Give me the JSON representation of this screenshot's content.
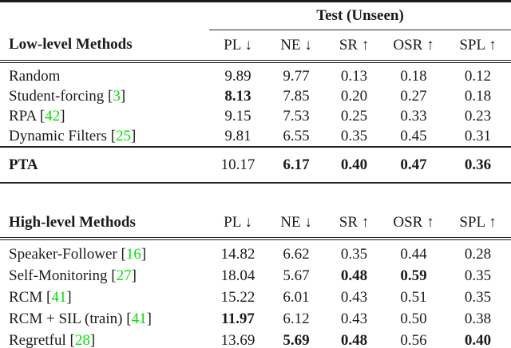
{
  "colors": {
    "citation_green": "#00e300",
    "text": "#1b1b1b",
    "rule": "#1b1b1b"
  },
  "span_header": "Test (Unseen)",
  "low": {
    "section_label": "Low-level Methods",
    "columns": [
      "PL ↓",
      "NE ↓",
      "SR ↑",
      "OSR ↑",
      "SPL ↑"
    ],
    "rows": [
      {
        "label": "Random",
        "cite_open": "",
        "cite": "",
        "cite_close": "",
        "values": [
          "9.89",
          "9.77",
          "0.13",
          "0.18",
          "0.12"
        ]
      },
      {
        "label": "Student-forcing",
        "cite_open": " [",
        "cite": "3",
        "cite_close": "]",
        "values": [
          "8.13",
          "7.85",
          "0.20",
          "0.27",
          "0.18"
        ]
      },
      {
        "label": "RPA",
        "cite_open": " [",
        "cite": "42",
        "cite_close": "]",
        "values": [
          "9.15",
          "7.53",
          "0.25",
          "0.33",
          "0.23"
        ]
      },
      {
        "label": "Dynamic Filters",
        "cite_open": " [",
        "cite": "25",
        "cite_close": "]",
        "values": [
          "9.81",
          "6.55",
          "0.35",
          "0.45",
          "0.31"
        ]
      }
    ]
  },
  "pta": {
    "label": "PTA",
    "values": [
      "10.17",
      "6.17",
      "0.40",
      "0.47",
      "0.36"
    ]
  },
  "high": {
    "section_label": "High-level Methods",
    "columns": [
      "PL ↓",
      "NE ↓",
      "SR ↑",
      "OSR ↑",
      "SPL ↑"
    ],
    "rows": [
      {
        "label": "Speaker-Follower",
        "cite_open": " [",
        "cite": "16",
        "cite_close": "]",
        "values": [
          "14.82",
          "6.62",
          "0.35",
          "0.44",
          "0.28"
        ]
      },
      {
        "label": "Self-Monitoring",
        "cite_open": " [",
        "cite": "27",
        "cite_close": "]",
        "values": [
          "18.04",
          "5.67",
          "0.48",
          "0.59",
          "0.35"
        ]
      },
      {
        "label": "RCM",
        "cite_open": " [",
        "cite": "41",
        "cite_close": "]",
        "values": [
          "15.22",
          "6.01",
          "0.43",
          "0.51",
          "0.35"
        ]
      },
      {
        "label": "RCM + SIL (train)",
        "cite_open": " [",
        "cite": "41",
        "cite_close": "]",
        "values": [
          "11.97",
          "6.12",
          "0.43",
          "0.50",
          "0.38"
        ]
      },
      {
        "label": "Regretful",
        "cite_open": " [",
        "cite": "28",
        "cite_close": "]",
        "values": [
          "13.69",
          "5.69",
          "0.48",
          "0.56",
          "0.40"
        ]
      }
    ]
  }
}
